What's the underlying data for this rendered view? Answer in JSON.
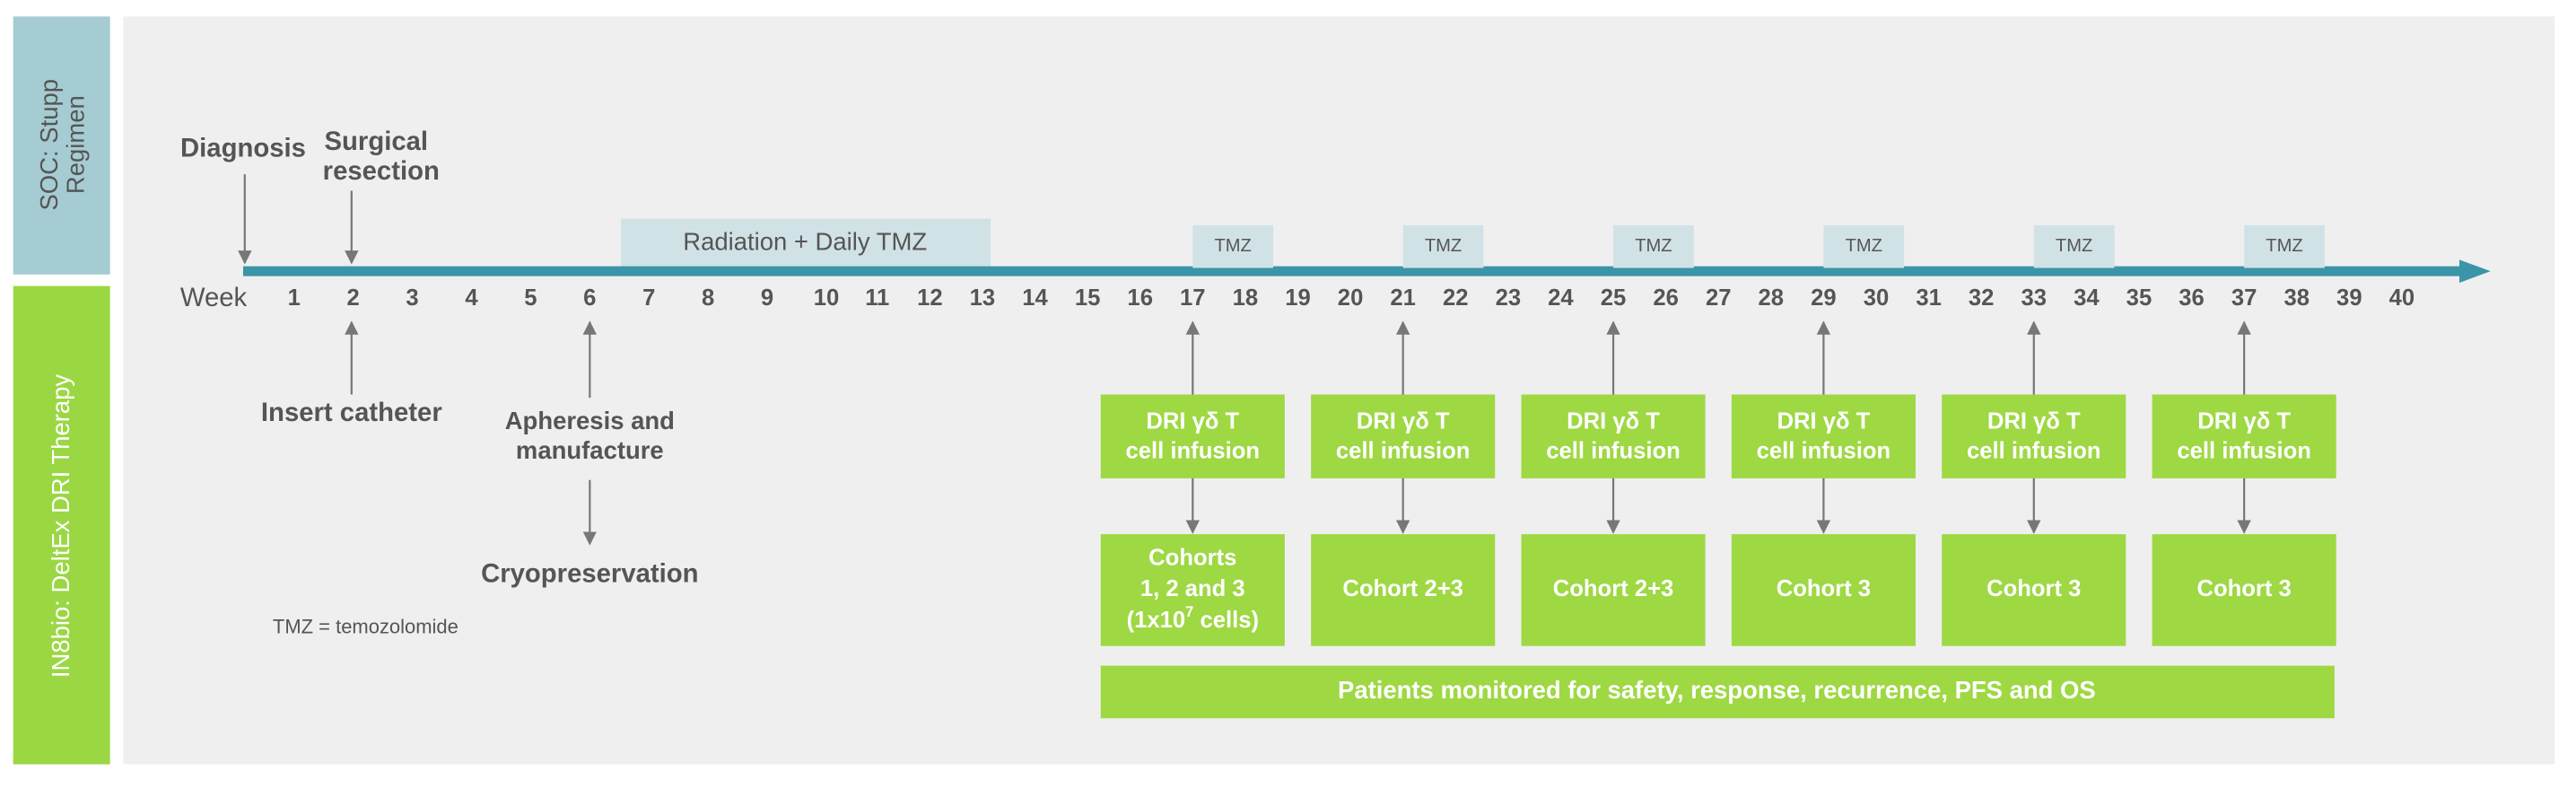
{
  "sidebar": {
    "top": [
      "SOC: Stupp",
      "Regimen"
    ],
    "bottom": "IN8bio: DeltEx DRI  Therapy"
  },
  "timeline": {
    "label": "Week",
    "weeks": [
      1,
      2,
      3,
      4,
      5,
      6,
      7,
      8,
      9,
      10,
      11,
      12,
      13,
      14,
      15,
      16,
      17,
      18,
      19,
      20,
      21,
      22,
      23,
      24,
      25,
      26,
      27,
      28,
      29,
      30,
      31,
      32,
      33,
      34,
      35,
      36,
      37,
      38,
      39,
      40
    ]
  },
  "diagnosis": "Diagnosis",
  "surgical_resection": [
    "Surgical",
    "resection"
  ],
  "radiation": "Radiation + Daily TMZ",
  "tmz_boxes": [
    "TMZ",
    "TMZ",
    "TMZ",
    "TMZ",
    "TMZ",
    "TMZ"
  ],
  "insert_catheter": "Insert catheter",
  "apheresis": [
    "Apheresis and",
    "manufacture"
  ],
  "cryopreservation": "Cryopreservation",
  "footnote": "TMZ = temozolomide",
  "infusions": [
    {
      "lines": [
        "DRI γδ T",
        "cell infusion"
      ]
    },
    {
      "lines": [
        "DRI γδ T",
        "cell infusion"
      ]
    },
    {
      "lines": [
        "DRI γδ T",
        "cell infusion"
      ]
    },
    {
      "lines": [
        "DRI γδ T",
        "cell infusion"
      ]
    },
    {
      "lines": [
        "DRI γδ T",
        "cell infusion"
      ]
    },
    {
      "lines": [
        "DRI γδ T",
        "cell infusion"
      ]
    }
  ],
  "cohorts": [
    {
      "lines": [
        "Cohorts",
        "1, 2 and 3"
      ],
      "dose": {
        "base": "(1x10",
        "sup": "7",
        "rest": " cells)"
      }
    },
    {
      "lines": [
        "Cohort  2+3"
      ]
    },
    {
      "lines": [
        "Cohort  2+3"
      ]
    },
    {
      "lines": [
        "Cohort  3"
      ]
    },
    {
      "lines": [
        "Cohort  3"
      ]
    },
    {
      "lines": [
        "Cohort  3"
      ]
    }
  ],
  "monitoring": "Patients monitored for safety, response, recurrence, PFS and OS"
}
